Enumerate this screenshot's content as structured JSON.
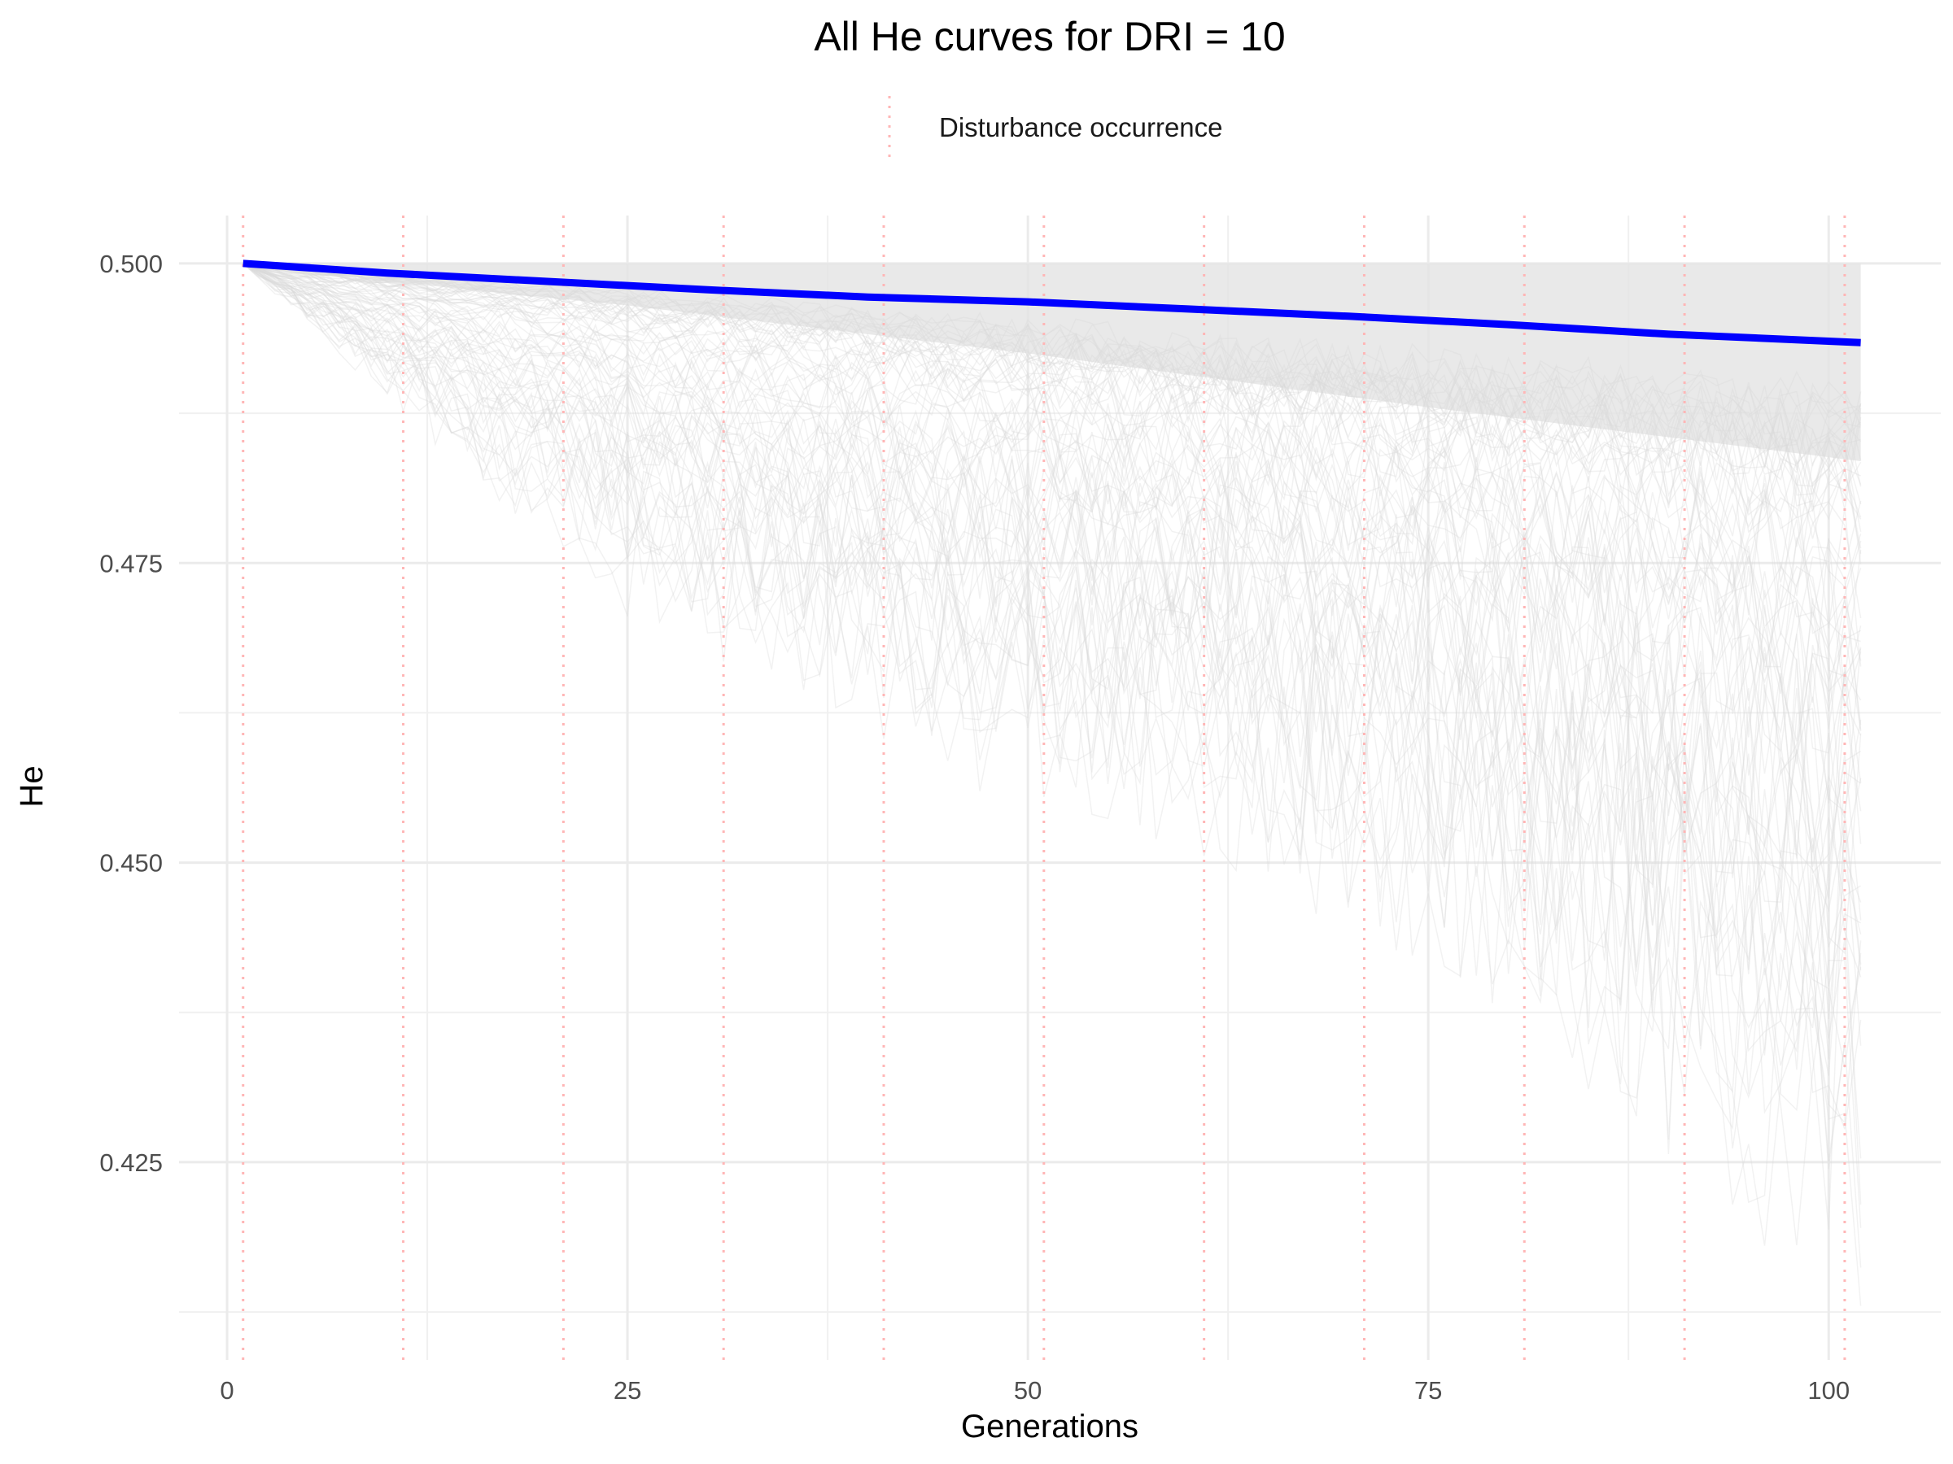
{
  "chart_data": {
    "type": "line",
    "title": "All He curves for DRI = 10",
    "xlabel": "Generations",
    "ylabel": "He",
    "xlim": [
      -3,
      107
    ],
    "ylim": [
      0.4085,
      0.504
    ],
    "x_ticks": [
      0,
      25,
      50,
      75,
      100
    ],
    "x_tick_labels": [
      "0",
      "25",
      "50",
      "75",
      "100"
    ],
    "y_ticks": [
      0.425,
      0.45,
      0.475,
      0.5
    ],
    "y_tick_labels": [
      "0.425",
      "0.450",
      "0.475",
      "0.500"
    ],
    "grid": true,
    "legend": {
      "position": "top",
      "entries": [
        {
          "label": "Disturbance occurrence",
          "style": "dotted",
          "color": "#ffb6b6"
        }
      ]
    },
    "disturbance_lines": {
      "color": "#ffb6b6",
      "x": [
        1,
        11,
        21,
        31,
        41,
        51,
        61,
        71,
        81,
        91,
        101
      ]
    },
    "replicate_curves": {
      "color": "#d9d9d9",
      "x_range": [
        1,
        102
      ],
      "upper_bound": 0.5,
      "mean_lower_by_generation": [
        [
          1,
          0.5
        ],
        [
          10,
          0.4985
        ],
        [
          25,
          0.4965
        ],
        [
          50,
          0.4925
        ],
        [
          75,
          0.488
        ],
        [
          102,
          0.4835
        ]
      ],
      "extreme_lower_by_generation": [
        [
          1,
          0.5
        ],
        [
          10,
          0.488
        ],
        [
          25,
          0.47
        ],
        [
          50,
          0.452
        ],
        [
          75,
          0.44
        ],
        [
          102,
          0.409
        ]
      ]
    },
    "series": [
      {
        "name": "",
        "color": "#0000ff",
        "x": [
          1,
          10,
          20,
          30,
          40,
          50,
          60,
          70,
          80,
          90,
          102
        ],
        "values": [
          0.5,
          0.4992,
          0.4985,
          0.4978,
          0.4972,
          0.4968,
          0.4962,
          0.4956,
          0.4949,
          0.4941,
          0.4934
        ]
      }
    ]
  }
}
